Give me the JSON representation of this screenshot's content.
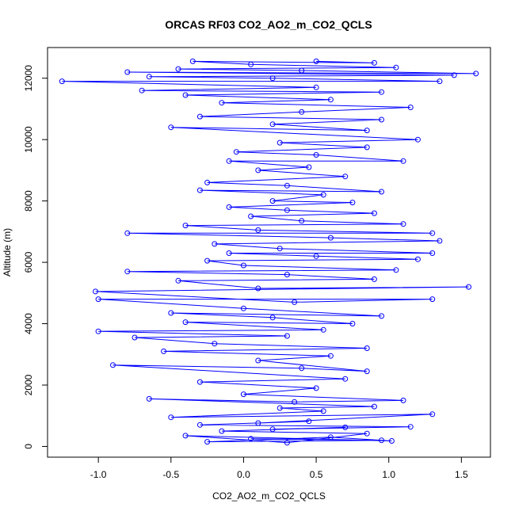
{
  "chart_data": {
    "type": "scatter",
    "title": "ORCAS RF03 CO2_AO2_m_CO2_QCLS",
    "xlabel": "CO2_AO2_m_CO2_QCLS",
    "ylabel": "Altitude (m)",
    "xlim": [
      -1.35,
      1.7
    ],
    "ylim": [
      -350,
      13000
    ],
    "xticks": [
      -1.0,
      -0.5,
      0.0,
      0.5,
      1.0,
      1.5
    ],
    "xtick_labels": [
      "-1.0",
      "-0.5",
      "0.0",
      "0.5",
      "1.0",
      "1.5"
    ],
    "yticks": [
      0,
      2000,
      4000,
      6000,
      8000,
      10000,
      12000
    ],
    "ytick_labels": [
      "0",
      "2000",
      "4000",
      "6000",
      "8000",
      "10000",
      "12000"
    ],
    "series": [
      {
        "color": "#0000ff",
        "marker": "open-circle",
        "connected": true,
        "points": [
          [
            0.05,
            250
          ],
          [
            0.95,
            200
          ],
          [
            -0.25,
            150
          ],
          [
            0.6,
            300
          ],
          [
            1.02,
            180
          ],
          [
            -0.4,
            350
          ],
          [
            0.3,
            120
          ],
          [
            0.85,
            420
          ],
          [
            -0.15,
            500
          ],
          [
            0.7,
            620
          ],
          [
            0.2,
            560
          ],
          [
            1.15,
            640
          ],
          [
            -0.3,
            700
          ],
          [
            0.45,
            820
          ],
          [
            0.1,
            760
          ],
          [
            1.3,
            1050
          ],
          [
            -0.5,
            950
          ],
          [
            0.55,
            1150
          ],
          [
            0.25,
            1250
          ],
          [
            0.9,
            1300
          ],
          [
            -0.65,
            1550
          ],
          [
            0.35,
            1450
          ],
          [
            1.1,
            1500
          ],
          [
            0.0,
            1700
          ],
          [
            0.5,
            1900
          ],
          [
            -0.3,
            2100
          ],
          [
            0.7,
            2200
          ],
          [
            -0.9,
            2650
          ],
          [
            0.4,
            2550
          ],
          [
            0.85,
            2450
          ],
          [
            0.1,
            2800
          ],
          [
            0.6,
            2950
          ],
          [
            -0.55,
            3100
          ],
          [
            0.85,
            3200
          ],
          [
            -0.2,
            3350
          ],
          [
            -0.75,
            3550
          ],
          [
            0.3,
            3600
          ],
          [
            -1.0,
            3750
          ],
          [
            0.55,
            3800
          ],
          [
            -0.4,
            4050
          ],
          [
            0.75,
            4000
          ],
          [
            0.2,
            4200
          ],
          [
            -0.5,
            4350
          ],
          [
            0.95,
            4250
          ],
          [
            0.0,
            4500
          ],
          [
            -1.0,
            4800
          ],
          [
            1.3,
            4800
          ],
          [
            0.35,
            4700
          ],
          [
            -1.02,
            5050
          ],
          [
            1.55,
            5200
          ],
          [
            0.1,
            5150
          ],
          [
            -0.45,
            5400
          ],
          [
            0.9,
            5450
          ],
          [
            0.3,
            5600
          ],
          [
            -0.8,
            5700
          ],
          [
            1.05,
            5750
          ],
          [
            0.0,
            5900
          ],
          [
            -0.25,
            6050
          ],
          [
            1.2,
            6100
          ],
          [
            0.5,
            6200
          ],
          [
            -0.1,
            6300
          ],
          [
            1.3,
            6300
          ],
          [
            0.25,
            6450
          ],
          [
            -0.2,
            6600
          ],
          [
            1.35,
            6700
          ],
          [
            0.6,
            6800
          ],
          [
            -0.8,
            6950
          ],
          [
            1.3,
            6950
          ],
          [
            0.1,
            7050
          ],
          [
            -0.4,
            7200
          ],
          [
            1.1,
            7250
          ],
          [
            0.4,
            7350
          ],
          [
            0.05,
            7500
          ],
          [
            0.9,
            7600
          ],
          [
            0.3,
            7700
          ],
          [
            -0.1,
            7800
          ],
          [
            0.75,
            7950
          ],
          [
            0.2,
            8000
          ],
          [
            0.55,
            8200
          ],
          [
            -0.3,
            8350
          ],
          [
            0.95,
            8300
          ],
          [
            0.3,
            8500
          ],
          [
            -0.25,
            8600
          ],
          [
            0.7,
            8800
          ],
          [
            0.1,
            9000
          ],
          [
            0.45,
            9100
          ],
          [
            -0.1,
            9300
          ],
          [
            1.1,
            9300
          ],
          [
            0.5,
            9500
          ],
          [
            -0.05,
            9600
          ],
          [
            0.85,
            9750
          ],
          [
            0.25,
            9900
          ],
          [
            1.2,
            10000
          ],
          [
            -0.5,
            10400
          ],
          [
            0.85,
            10300
          ],
          [
            0.2,
            10500
          ],
          [
            0.95,
            10650
          ],
          [
            -0.3,
            10750
          ],
          [
            0.4,
            10900
          ],
          [
            1.15,
            11050
          ],
          [
            -0.15,
            11200
          ],
          [
            0.6,
            11300
          ],
          [
            -0.4,
            11450
          ],
          [
            0.95,
            11550
          ],
          [
            -0.7,
            11600
          ],
          [
            0.5,
            11700
          ],
          [
            -1.25,
            11900
          ],
          [
            1.35,
            11900
          ],
          [
            0.2,
            12000
          ],
          [
            -0.65,
            12050
          ],
          [
            1.45,
            12100
          ],
          [
            -0.8,
            12200
          ],
          [
            1.6,
            12150
          ],
          [
            0.4,
            12250
          ],
          [
            -0.45,
            12300
          ],
          [
            1.05,
            12350
          ],
          [
            0.05,
            12450
          ],
          [
            -0.35,
            12550
          ],
          [
            0.9,
            12500
          ],
          [
            0.5,
            12550
          ]
        ]
      }
    ]
  }
}
